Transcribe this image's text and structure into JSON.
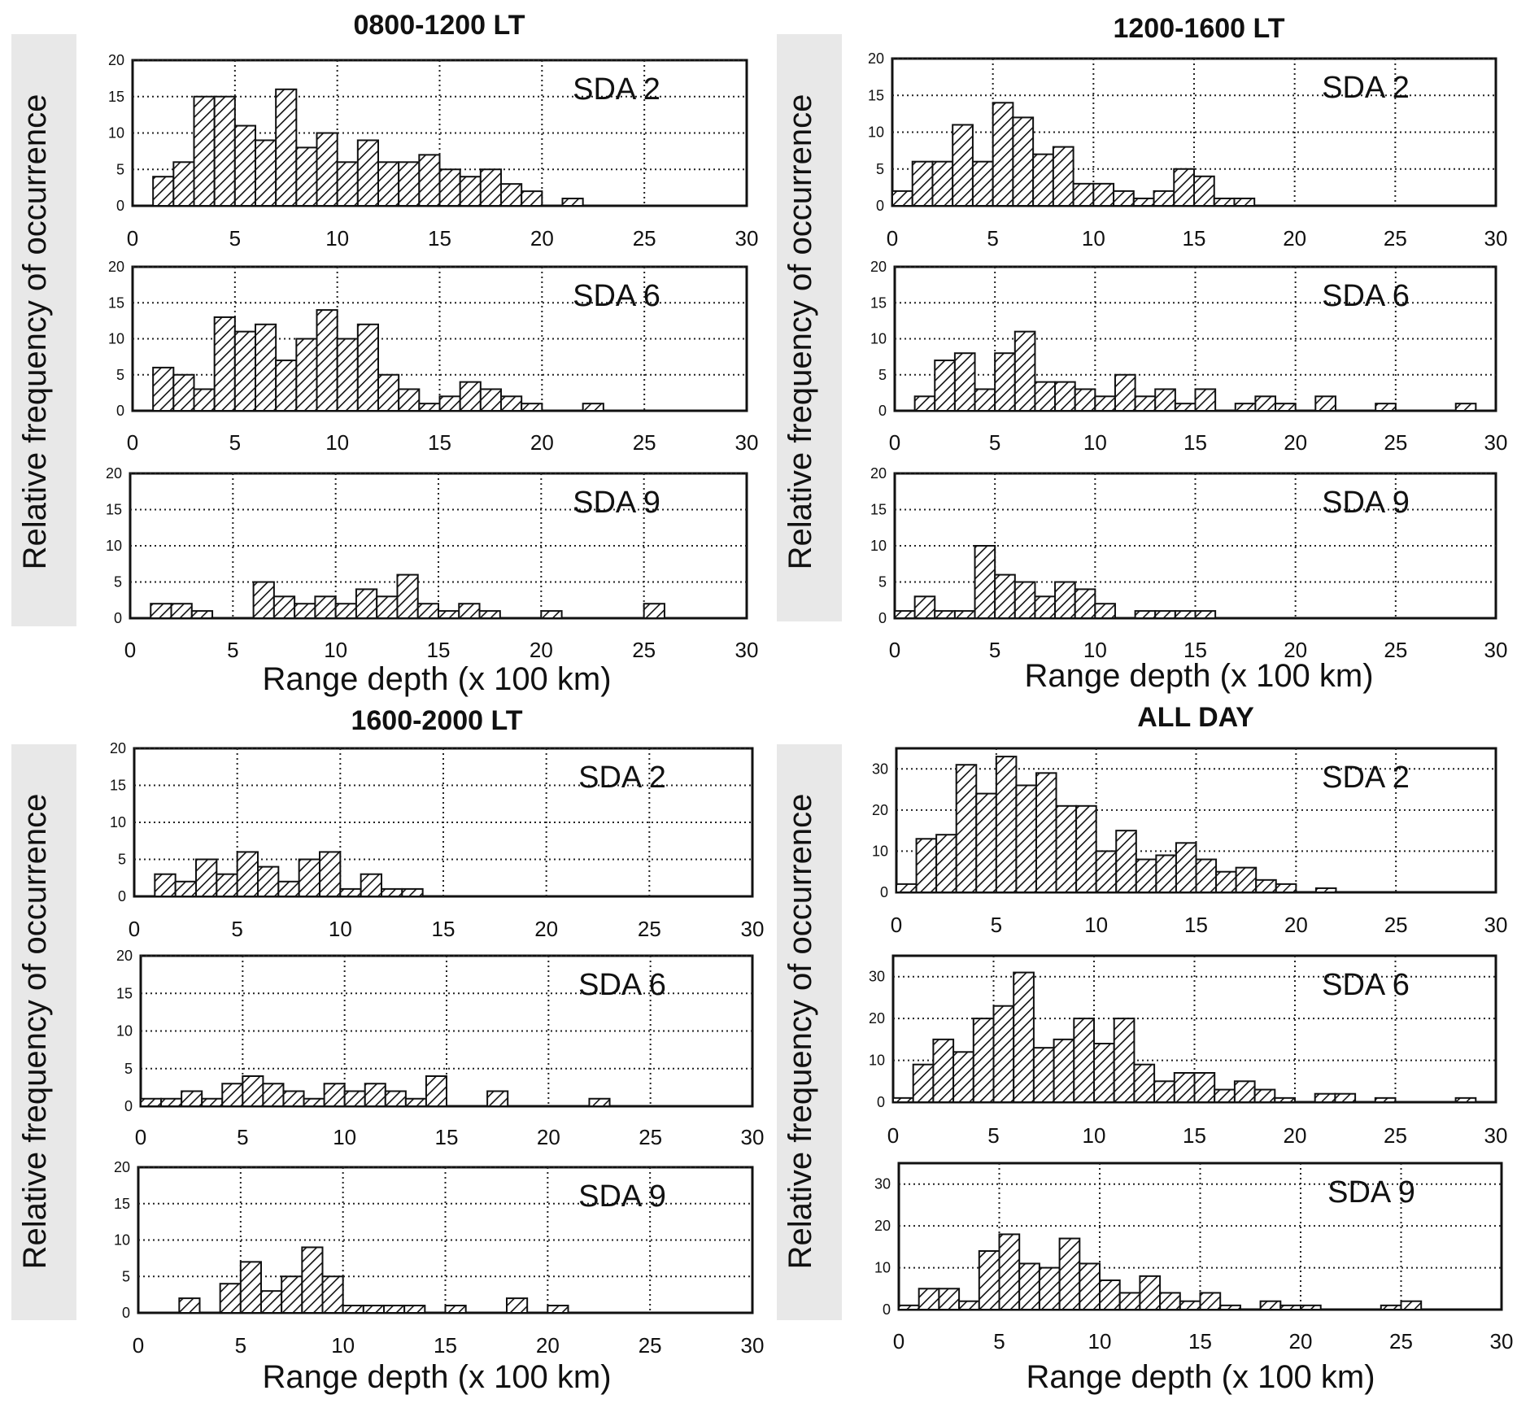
{
  "colors": {
    "bar_stroke": "#111111",
    "hatch": "#111111",
    "grid": "#222222",
    "ylabel_band": "#e8e8e8"
  },
  "ylabel": "Relative frequency of occurrence",
  "xlabel": "Range depth (x 100 km)",
  "chart_data": [
    {
      "type": "bar",
      "title": "0800-1200 LT",
      "x_ticks": [
        "0",
        "5",
        "10",
        "15",
        "20",
        "25",
        "30"
      ],
      "xlim": [
        0,
        30
      ],
      "panels": [
        {
          "label": "SDA 2",
          "ylim": [
            0,
            20
          ],
          "y_ticks": [
            "0",
            "5",
            "10",
            "15",
            "20"
          ],
          "values": [
            0,
            4,
            6,
            15,
            15,
            11,
            9,
            16,
            8,
            10,
            6,
            9,
            6,
            6,
            7,
            5,
            4,
            5,
            3,
            2,
            0,
            1,
            0,
            0,
            0,
            0,
            0,
            0,
            0,
            0
          ]
        },
        {
          "label": "SDA 6",
          "ylim": [
            0,
            20
          ],
          "y_ticks": [
            "0",
            "5",
            "10",
            "15",
            "20"
          ],
          "values": [
            0,
            6,
            5,
            3,
            13,
            11,
            12,
            7,
            10,
            14,
            10,
            12,
            5,
            3,
            1,
            2,
            4,
            3,
            2,
            1,
            0,
            0,
            1,
            0,
            0,
            0,
            0,
            0,
            0,
            0
          ]
        },
        {
          "label": "SDA 9",
          "ylim": [
            0,
            20
          ],
          "y_ticks": [
            "0",
            "5",
            "10",
            "15",
            "20"
          ],
          "values": [
            0,
            2,
            2,
            1,
            0,
            0,
            5,
            3,
            2,
            3,
            2,
            4,
            3,
            6,
            2,
            1,
            2,
            1,
            0,
            0,
            1,
            0,
            0,
            0,
            0,
            2,
            0,
            0,
            0,
            0
          ]
        }
      ]
    },
    {
      "type": "bar",
      "title": "1200-1600 LT",
      "x_ticks": [
        "0",
        "5",
        "10",
        "15",
        "20",
        "25",
        "30"
      ],
      "xlim": [
        0,
        30
      ],
      "panels": [
        {
          "label": "SDA 2",
          "ylim": [
            0,
            20
          ],
          "y_ticks": [
            "0",
            "5",
            "10",
            "15",
            "20"
          ],
          "values": [
            2,
            6,
            6,
            11,
            6,
            14,
            12,
            7,
            8,
            3,
            3,
            2,
            1,
            2,
            5,
            4,
            1,
            1,
            0,
            0,
            0,
            0,
            0,
            0,
            0,
            0,
            0,
            0,
            0,
            0
          ]
        },
        {
          "label": "SDA 6",
          "ylim": [
            0,
            20
          ],
          "y_ticks": [
            "0",
            "5",
            "10",
            "15",
            "20"
          ],
          "values": [
            0,
            2,
            7,
            8,
            3,
            8,
            11,
            4,
            4,
            3,
            2,
            5,
            2,
            3,
            1,
            3,
            0,
            1,
            2,
            1,
            0,
            2,
            0,
            0,
            1,
            0,
            0,
            0,
            1,
            0
          ]
        },
        {
          "label": "SDA 9",
          "ylim": [
            0,
            20
          ],
          "y_ticks": [
            "0",
            "5",
            "10",
            "15",
            "20"
          ],
          "values": [
            1,
            3,
            1,
            1,
            10,
            6,
            5,
            3,
            5,
            4,
            2,
            0,
            1,
            1,
            1,
            1,
            0,
            0,
            0,
            0,
            0,
            0,
            0,
            0,
            0,
            0,
            0,
            0,
            0,
            0
          ]
        }
      ]
    },
    {
      "type": "bar",
      "title": "1600-2000 LT",
      "x_ticks": [
        "0",
        "5",
        "10",
        "15",
        "20",
        "25",
        "30"
      ],
      "xlim": [
        0,
        30
      ],
      "panels": [
        {
          "label": "SDA 2",
          "ylim": [
            0,
            20
          ],
          "y_ticks": [
            "0",
            "5",
            "10",
            "15",
            "20"
          ],
          "values": [
            0,
            3,
            2,
            5,
            3,
            6,
            4,
            2,
            5,
            6,
            1,
            3,
            1,
            1,
            0,
            0,
            0,
            0,
            0,
            0,
            0,
            0,
            0,
            0,
            0,
            0,
            0,
            0,
            0,
            0
          ]
        },
        {
          "label": "SDA 6",
          "ylim": [
            0,
            20
          ],
          "y_ticks": [
            "0",
            "5",
            "10",
            "15",
            "20"
          ],
          "values": [
            1,
            1,
            2,
            1,
            3,
            4,
            3,
            2,
            1,
            3,
            2,
            3,
            2,
            1,
            4,
            0,
            0,
            2,
            0,
            0,
            0,
            0,
            1,
            0,
            0,
            0,
            0,
            0,
            0,
            0
          ]
        },
        {
          "label": "SDA 9",
          "ylim": [
            0,
            20
          ],
          "y_ticks": [
            "0",
            "5",
            "10",
            "15",
            "20"
          ],
          "values": [
            0,
            0,
            2,
            0,
            4,
            7,
            3,
            5,
            9,
            5,
            1,
            1,
            1,
            1,
            0,
            1,
            0,
            0,
            2,
            0,
            1,
            0,
            0,
            0,
            0,
            0,
            0,
            0,
            0,
            0
          ]
        }
      ]
    },
    {
      "type": "bar",
      "title": "ALL DAY",
      "x_ticks": [
        "0",
        "5",
        "10",
        "15",
        "20",
        "25",
        "30"
      ],
      "xlim": [
        0,
        30
      ],
      "panels": [
        {
          "label": "SDA 2",
          "ylim": [
            0,
            35
          ],
          "y_ticks": [
            "0",
            "10",
            "20",
            "30"
          ],
          "values": [
            2,
            13,
            14,
            31,
            24,
            33,
            26,
            29,
            21,
            21,
            10,
            15,
            8,
            9,
            12,
            8,
            5,
            6,
            3,
            2,
            0,
            1,
            0,
            0,
            0,
            0,
            0,
            0,
            0,
            0
          ]
        },
        {
          "label": "SDA 6",
          "ylim": [
            0,
            35
          ],
          "y_ticks": [
            "0",
            "10",
            "20",
            "30"
          ],
          "values": [
            1,
            9,
            15,
            12,
            20,
            23,
            31,
            13,
            15,
            20,
            14,
            20,
            9,
            5,
            7,
            7,
            3,
            5,
            3,
            1,
            0,
            2,
            2,
            0,
            1,
            0,
            0,
            0,
            1,
            0
          ]
        },
        {
          "label": "SDA 9",
          "ylim": [
            0,
            35
          ],
          "y_ticks": [
            "0",
            "10",
            "20",
            "30"
          ],
          "values": [
            1,
            5,
            5,
            2,
            14,
            18,
            11,
            10,
            17,
            11,
            7,
            4,
            8,
            4,
            2,
            4,
            1,
            0,
            2,
            1,
            1,
            0,
            0,
            0,
            1,
            2,
            0,
            0,
            0,
            0
          ]
        }
      ]
    }
  ]
}
